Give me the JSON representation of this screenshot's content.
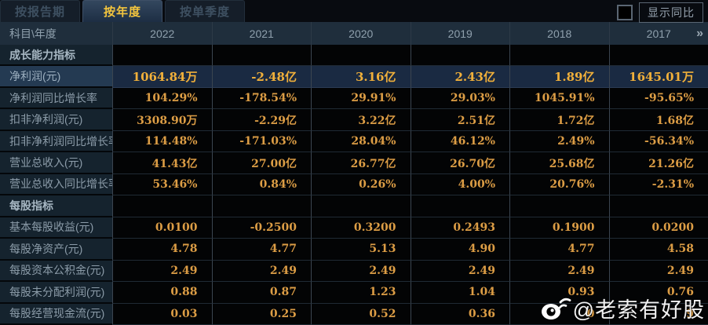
{
  "tabs": [
    {
      "label": "按报告期",
      "active": false
    },
    {
      "label": "按年度",
      "active": true
    },
    {
      "label": "按单季度",
      "active": false
    }
  ],
  "controls": {
    "show_yoy_label": "显示同比",
    "checkbox_checked": false
  },
  "table": {
    "corner_header": "科目\\年度",
    "years": [
      "2022",
      "2021",
      "2020",
      "2019",
      "2018",
      "2017"
    ],
    "more_icon": "»",
    "rows": [
      {
        "type": "section",
        "label": "成长能力指标",
        "values": [
          "",
          "",
          "",
          "",
          "",
          ""
        ]
      },
      {
        "type": "data",
        "label": "净利润(元)",
        "highlight": true,
        "values": [
          "1064.84万",
          "-2.48亿",
          "3.16亿",
          "2.43亿",
          "1.89亿",
          "1645.01万"
        ]
      },
      {
        "type": "data",
        "label": "净利润同比增长率",
        "values": [
          "104.29%",
          "-178.54%",
          "29.91%",
          "29.03%",
          "1045.91%",
          "-95.65%"
        ]
      },
      {
        "type": "data",
        "label": "扣非净利润(元)",
        "values": [
          "3308.90万",
          "-2.29亿",
          "3.22亿",
          "2.51亿",
          "1.72亿",
          "1.68亿"
        ]
      },
      {
        "type": "data",
        "label": "扣非净利润同比增长率",
        "values": [
          "114.48%",
          "-171.03%",
          "28.04%",
          "46.12%",
          "2.49%",
          "-56.34%"
        ]
      },
      {
        "type": "data",
        "label": "营业总收入(元)",
        "values": [
          "41.43亿",
          "27.00亿",
          "26.77亿",
          "26.70亿",
          "25.68亿",
          "21.26亿"
        ]
      },
      {
        "type": "data",
        "label": "营业总收入同比增长率",
        "values": [
          "53.46%",
          "0.84%",
          "0.26%",
          "4.00%",
          "20.76%",
          "-2.31%"
        ]
      },
      {
        "type": "section",
        "label": "每股指标",
        "values": [
          "",
          "",
          "",
          "",
          "",
          ""
        ]
      },
      {
        "type": "data",
        "label": "基本每股收益(元)",
        "values": [
          "0.0100",
          "-0.2500",
          "0.3200",
          "0.2493",
          "0.1900",
          "0.0200"
        ]
      },
      {
        "type": "data",
        "label": "每股净资产(元)",
        "values": [
          "4.78",
          "4.77",
          "5.13",
          "4.90",
          "4.77",
          "4.58"
        ]
      },
      {
        "type": "data",
        "label": "每股资本公积金(元)",
        "values": [
          "2.49",
          "2.49",
          "2.49",
          "2.49",
          "2.49",
          "2.49"
        ]
      },
      {
        "type": "data",
        "label": "每股未分配利润(元)",
        "values": [
          "0.88",
          "0.87",
          "1.23",
          "1.04",
          "0.93",
          "0.76"
        ]
      },
      {
        "type": "data",
        "label": "每股经营现金流(元)",
        "values": [
          "0.03",
          "0.25",
          "0.52",
          "0.36",
          "0",
          "9"
        ]
      }
    ]
  },
  "watermark": {
    "icon": "weibo-icon",
    "text": "@老索有好股"
  },
  "colors": {
    "value_orange": "#dc9d45",
    "highlight_orange": "#f1b03a",
    "active_tab_text": "#f3c53e",
    "highlight_row_bg": "#1a2a42",
    "label_bg": "#15232e",
    "header_bg": "#1f2e3c"
  }
}
